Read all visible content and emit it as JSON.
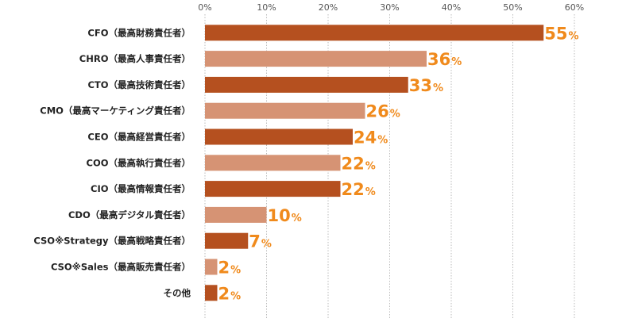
{
  "chart_data": {
    "type": "bar",
    "orientation": "horizontal",
    "title": "",
    "xlabel": "",
    "ylabel": "",
    "xlim": [
      0,
      60
    ],
    "ticks": [
      0,
      10,
      20,
      30,
      40,
      50,
      60
    ],
    "tick_suffix": "%",
    "value_suffix": "%",
    "grid": true,
    "categories": [
      "CFO（最高財務責任者）",
      "CHRO（最高人事責任者）",
      "CTO（最高技術責任者）",
      "CMO（最高マーケティング責任者）",
      "CEO（最高経営責任者）",
      "COO（最高執行責任者）",
      "CIO（最高情報責任者）",
      "CDO（最高デジタル責任者）",
      "CSO※Strategy（最高戦略責任者）",
      "CSO※Sales（最高販売責任者）",
      "その他"
    ],
    "values": [
      55,
      36,
      33,
      26,
      24,
      22,
      22,
      10,
      7,
      2,
      2
    ],
    "colors": {
      "dark_bar": "#b5501f",
      "light_bar": "#d69374",
      "value_label": "#f08a1c",
      "grid": "#bbbbbb"
    }
  }
}
